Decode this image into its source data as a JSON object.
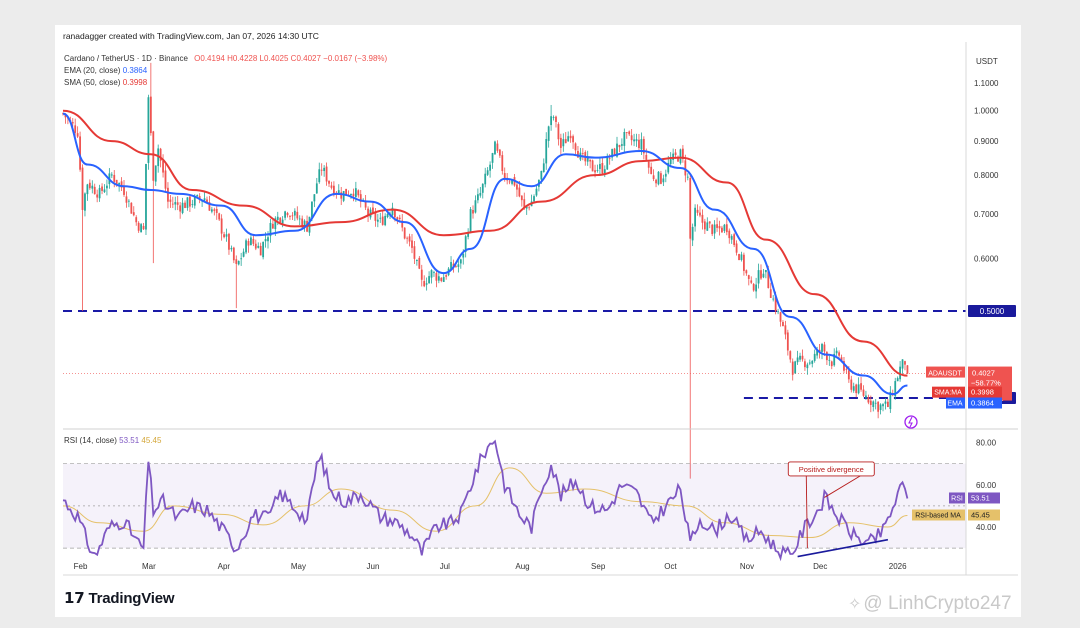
{
  "header": {
    "credit": "ranadagger created with TradingView.com, Jan 07, 2026 14:30 UTC",
    "symbol_line": "Cardano / TetherUS · 1D · Binance",
    "ohlc": "O0.4194 H0.4228 L0.4025 C0.4027 −0.0167 (−3.98%)",
    "ema_label": "EMA (20, close)",
    "ema_value": "0.3864",
    "sma_label": "SMA (50, close)",
    "sma_value": "0.3998",
    "rsi_label": "RSI (14, close)",
    "rsi_value": "53.51",
    "rsi_ma_value": "45.45"
  },
  "logo": {
    "text": "TradingView",
    "icon": "tradingview-logo-icon"
  },
  "watermark": {
    "text": "LinhCrypto247",
    "icon": "binance-square-icon"
  },
  "colors": {
    "ema": "#2962ff",
    "sma": "#e53935",
    "up": "#26a69a",
    "down": "#ef5350",
    "rsi": "#7e57c2",
    "rsi_ma": "#e5c16a",
    "level": "#1a1aa6"
  },
  "chart_data": [
    {
      "type": "candlestick",
      "title": "Cardano / TetherUS · 1D · Binance",
      "price_unit": "USDT",
      "y_scale": "log",
      "ylim": [
        0.355,
        1.2
      ],
      "xlim": [
        "2025-01-26",
        "2026-01-31"
      ],
      "y_ticks": [
        1.1,
        1.0,
        0.9,
        0.8,
        0.7,
        0.6
      ],
      "x_ticks": [
        {
          "date": "2025-02-01",
          "label": "Feb"
        },
        {
          "date": "2025-03-01",
          "label": "Mar"
        },
        {
          "date": "2025-04-01",
          "label": "Apr"
        },
        {
          "date": "2025-05-01",
          "label": "May"
        },
        {
          "date": "2025-06-01",
          "label": "Jun"
        },
        {
          "date": "2025-07-01",
          "label": "Jul"
        },
        {
          "date": "2025-08-01",
          "label": "Aug"
        },
        {
          "date": "2025-09-01",
          "label": "Sep"
        },
        {
          "date": "2025-10-01",
          "label": "Oct"
        },
        {
          "date": "2025-11-01",
          "label": "Nov"
        },
        {
          "date": "2025-12-01",
          "label": "Dec"
        },
        {
          "date": "2026-01-01",
          "label": "2026"
        }
      ],
      "close_path": [
        [
          "2025-01-26",
          0.99
        ],
        [
          "2025-02-01",
          0.93
        ],
        [
          "2025-02-03",
          0.72
        ],
        [
          "2025-02-05",
          0.78
        ],
        [
          "2025-02-10",
          0.75
        ],
        [
          "2025-02-15",
          0.8
        ],
        [
          "2025-02-20",
          0.76
        ],
        [
          "2025-02-25",
          0.68
        ],
        [
          "2025-02-28",
          0.66
        ],
        [
          "2025-03-02",
          1.05
        ],
        [
          "2025-03-04",
          0.8
        ],
        [
          "2025-03-06",
          0.88
        ],
        [
          "2025-03-10",
          0.73
        ],
        [
          "2025-03-15",
          0.72
        ],
        [
          "2025-03-20",
          0.73
        ],
        [
          "2025-03-25",
          0.74
        ],
        [
          "2025-03-30",
          0.69
        ],
        [
          "2025-04-03",
          0.64
        ],
        [
          "2025-04-07",
          0.58
        ],
        [
          "2025-04-12",
          0.64
        ],
        [
          "2025-04-17",
          0.62
        ],
        [
          "2025-04-22",
          0.68
        ],
        [
          "2025-04-28",
          0.71
        ],
        [
          "2025-05-02",
          0.69
        ],
        [
          "2025-05-06",
          0.67
        ],
        [
          "2025-05-10",
          0.78
        ],
        [
          "2025-05-12",
          0.82
        ],
        [
          "2025-05-16",
          0.77
        ],
        [
          "2025-05-20",
          0.75
        ],
        [
          "2025-05-25",
          0.76
        ],
        [
          "2025-05-31",
          0.7
        ],
        [
          "2025-06-05",
          0.68
        ],
        [
          "2025-06-10",
          0.72
        ],
        [
          "2025-06-15",
          0.65
        ],
        [
          "2025-06-18",
          0.62
        ],
        [
          "2025-06-22",
          0.55
        ],
        [
          "2025-06-26",
          0.57
        ],
        [
          "2025-06-30",
          0.56
        ],
        [
          "2025-07-04",
          0.58
        ],
        [
          "2025-07-08",
          0.59
        ],
        [
          "2025-07-12",
          0.7
        ],
        [
          "2025-07-16",
          0.75
        ],
        [
          "2025-07-20",
          0.83
        ],
        [
          "2025-07-22",
          0.88
        ],
        [
          "2025-07-26",
          0.8
        ],
        [
          "2025-07-30",
          0.78
        ],
        [
          "2025-08-03",
          0.71
        ],
        [
          "2025-08-06",
          0.73
        ],
        [
          "2025-08-10",
          0.8
        ],
        [
          "2025-08-13",
          0.95
        ],
        [
          "2025-08-15",
          0.98
        ],
        [
          "2025-08-18",
          0.88
        ],
        [
          "2025-08-22",
          0.93
        ],
        [
          "2025-08-26",
          0.85
        ],
        [
          "2025-08-31",
          0.82
        ],
        [
          "2025-09-04",
          0.82
        ],
        [
          "2025-09-08",
          0.86
        ],
        [
          "2025-09-13",
          0.91
        ],
        [
          "2025-09-17",
          0.9
        ],
        [
          "2025-09-20",
          0.89
        ],
        [
          "2025-09-24",
          0.8
        ],
        [
          "2025-09-28",
          0.79
        ],
        [
          "2025-10-02",
          0.84
        ],
        [
          "2025-10-06",
          0.86
        ],
        [
          "2025-10-09",
          0.79
        ],
        [
          "2025-10-10",
          0.64
        ],
        [
          "2025-10-12",
          0.7
        ],
        [
          "2025-10-15",
          0.68
        ],
        [
          "2025-10-20",
          0.66
        ],
        [
          "2025-10-25",
          0.67
        ],
        [
          "2025-10-30",
          0.61
        ],
        [
          "2025-11-04",
          0.54
        ],
        [
          "2025-11-09",
          0.58
        ],
        [
          "2025-11-13",
          0.52
        ],
        [
          "2025-11-17",
          0.47
        ],
        [
          "2025-11-21",
          0.41
        ],
        [
          "2025-11-24",
          0.42
        ],
        [
          "2025-11-28",
          0.42
        ],
        [
          "2025-12-03",
          0.44
        ],
        [
          "2025-12-07",
          0.42
        ],
        [
          "2025-12-10",
          0.43
        ],
        [
          "2025-12-14",
          0.39
        ],
        [
          "2025-12-18",
          0.38
        ],
        [
          "2025-12-22",
          0.37
        ],
        [
          "2025-12-26",
          0.36
        ],
        [
          "2025-12-30",
          0.36
        ],
        [
          "2026-01-02",
          0.39
        ],
        [
          "2026-01-04",
          0.41
        ],
        [
          "2026-01-06",
          0.42
        ],
        [
          "2026-01-07",
          0.4027
        ]
      ],
      "spike_lows": [
        [
          "2025-02-03",
          0.5
        ],
        [
          "2025-03-04",
          0.59
        ],
        [
          "2025-04-07",
          0.505
        ],
        [
          "2025-10-10",
          0.28
        ],
        [
          "2025-12-26",
          0.345
        ]
      ],
      "spike_highs": [
        [
          "2025-03-03",
          1.18
        ],
        [
          "2025-08-14",
          1.02
        ]
      ],
      "series": [
        {
          "name": "EMA (20, close)",
          "points": [
            [
              "2025-01-26",
              0.99
            ],
            [
              "2025-02-05",
              0.83
            ],
            [
              "2025-02-20",
              0.77
            ],
            [
              "2025-03-03",
              0.76
            ],
            [
              "2025-03-15",
              0.75
            ],
            [
              "2025-04-01",
              0.72
            ],
            [
              "2025-04-15",
              0.65
            ],
            [
              "2025-05-01",
              0.66
            ],
            [
              "2025-05-18",
              0.75
            ],
            [
              "2025-06-01",
              0.73
            ],
            [
              "2025-06-15",
              0.68
            ],
            [
              "2025-07-01",
              0.57
            ],
            [
              "2025-07-12",
              0.62
            ],
            [
              "2025-07-26",
              0.79
            ],
            [
              "2025-08-06",
              0.77
            ],
            [
              "2025-08-20",
              0.86
            ],
            [
              "2025-09-01",
              0.85
            ],
            [
              "2025-09-20",
              0.87
            ],
            [
              "2025-10-06",
              0.82
            ],
            [
              "2025-10-20",
              0.71
            ],
            [
              "2025-11-05",
              0.62
            ],
            [
              "2025-11-20",
              0.49
            ],
            [
              "2025-12-05",
              0.43
            ],
            [
              "2025-12-20",
              0.4
            ],
            [
              "2026-01-01",
              0.375
            ],
            [
              "2026-01-07",
              0.3864
            ]
          ]
        },
        {
          "name": "SMA (50, close)",
          "points": [
            [
              "2025-01-26",
              1.0
            ],
            [
              "2025-02-15",
              0.9
            ],
            [
              "2025-03-03",
              0.86
            ],
            [
              "2025-03-20",
              0.76
            ],
            [
              "2025-04-10",
              0.72
            ],
            [
              "2025-05-01",
              0.67
            ],
            [
              "2025-05-20",
              0.68
            ],
            [
              "2025-06-10",
              0.71
            ],
            [
              "2025-07-01",
              0.65
            ],
            [
              "2025-07-20",
              0.66
            ],
            [
              "2025-08-10",
              0.73
            ],
            [
              "2025-09-01",
              0.8
            ],
            [
              "2025-09-20",
              0.84
            ],
            [
              "2025-10-06",
              0.85
            ],
            [
              "2025-10-25",
              0.78
            ],
            [
              "2025-11-10",
              0.64
            ],
            [
              "2025-11-30",
              0.53
            ],
            [
              "2025-12-20",
              0.45
            ],
            [
              "2026-01-07",
              0.3998
            ]
          ]
        }
      ],
      "levels": [
        {
          "value": 0.5,
          "label": "0.5000",
          "from": "2025-01-26"
        },
        {
          "value": 0.37,
          "label": "0.3700",
          "from": "2025-11-01"
        }
      ],
      "axis_tags": [
        {
          "value": 0.4027,
          "label": "ADAUSDT",
          "price": "0.4027",
          "change": "−58.77%",
          "countdown": "09:29:48",
          "color": "#ef5350"
        },
        {
          "value": 0.3998,
          "label": "SMA:MA",
          "price": "0.3998",
          "color": "#e53935"
        },
        {
          "value": 0.3864,
          "label": "EMA",
          "price": "0.3864",
          "color": "#2962ff"
        }
      ]
    },
    {
      "type": "line",
      "title": "RSI (14, close)",
      "ylim": [
        22,
        85
      ],
      "y_ticks": [
        80,
        60,
        40
      ],
      "bands": [
        70,
        50,
        30
      ],
      "series": [
        {
          "name": "RSI",
          "points": [
            [
              "2025-01-26",
              53
            ],
            [
              "2025-02-01",
              45
            ],
            [
              "2025-02-05",
              33
            ],
            [
              "2025-02-08",
              26
            ],
            [
              "2025-02-14",
              40
            ],
            [
              "2025-02-20",
              43
            ],
            [
              "2025-02-26",
              32
            ],
            [
              "2025-02-28",
              30
            ],
            [
              "2025-03-02",
              72
            ],
            [
              "2025-03-04",
              48
            ],
            [
              "2025-03-08",
              52
            ],
            [
              "2025-03-14",
              44
            ],
            [
              "2025-03-20",
              50
            ],
            [
              "2025-03-26",
              48
            ],
            [
              "2025-04-02",
              38
            ],
            [
              "2025-04-07",
              30
            ],
            [
              "2025-04-14",
              46
            ],
            [
              "2025-04-20",
              44
            ],
            [
              "2025-04-25",
              56
            ],
            [
              "2025-05-02",
              48
            ],
            [
              "2025-05-06",
              43
            ],
            [
              "2025-05-10",
              70
            ],
            [
              "2025-05-12",
              72
            ],
            [
              "2025-05-16",
              56
            ],
            [
              "2025-05-22",
              52
            ],
            [
              "2025-05-28",
              56
            ],
            [
              "2025-06-05",
              45
            ],
            [
              "2025-06-12",
              42
            ],
            [
              "2025-06-18",
              36
            ],
            [
              "2025-06-22",
              28
            ],
            [
              "2025-06-28",
              40
            ],
            [
              "2025-07-04",
              42
            ],
            [
              "2025-07-08",
              46
            ],
            [
              "2025-07-14",
              66
            ],
            [
              "2025-07-18",
              76
            ],
            [
              "2025-07-22",
              82
            ],
            [
              "2025-07-26",
              60
            ],
            [
              "2025-08-01",
              46
            ],
            [
              "2025-08-06",
              40
            ],
            [
              "2025-08-10",
              58
            ],
            [
              "2025-08-14",
              70
            ],
            [
              "2025-08-18",
              55
            ],
            [
              "2025-08-24",
              62
            ],
            [
              "2025-08-30",
              50
            ],
            [
              "2025-09-06",
              48
            ],
            [
              "2025-09-12",
              60
            ],
            [
              "2025-09-18",
              56
            ],
            [
              "2025-09-24",
              42
            ],
            [
              "2025-09-30",
              50
            ],
            [
              "2025-10-06",
              58
            ],
            [
              "2025-10-10",
              32
            ],
            [
              "2025-10-14",
              44
            ],
            [
              "2025-10-20",
              38
            ],
            [
              "2025-10-26",
              46
            ],
            [
              "2025-11-02",
              34
            ],
            [
              "2025-11-08",
              38
            ],
            [
              "2025-11-14",
              30
            ],
            [
              "2025-11-20",
              26
            ],
            [
              "2025-11-26",
              40
            ],
            [
              "2025-12-02",
              49
            ],
            [
              "2025-12-04",
              54
            ],
            [
              "2025-12-10",
              44
            ],
            [
              "2025-12-16",
              36
            ],
            [
              "2025-12-22",
              32
            ],
            [
              "2025-12-28",
              38
            ],
            [
              "2026-01-02",
              52
            ],
            [
              "2026-01-05",
              60
            ],
            [
              "2026-01-07",
              53.51
            ]
          ]
        },
        {
          "name": "RSI-based MA",
          "points": [
            [
              "2025-01-26",
              50
            ],
            [
              "2025-02-10",
              42
            ],
            [
              "2025-02-28",
              38
            ],
            [
              "2025-03-12",
              50
            ],
            [
              "2025-04-01",
              46
            ],
            [
              "2025-04-18",
              41
            ],
            [
              "2025-05-05",
              50
            ],
            [
              "2025-05-20",
              58
            ],
            [
              "2025-06-10",
              48
            ],
            [
              "2025-06-28",
              38
            ],
            [
              "2025-07-14",
              50
            ],
            [
              "2025-07-28",
              68
            ],
            [
              "2025-08-12",
              56
            ],
            [
              "2025-08-28",
              58
            ],
            [
              "2025-09-20",
              52
            ],
            [
              "2025-10-08",
              50
            ],
            [
              "2025-10-24",
              42
            ],
            [
              "2025-11-12",
              36
            ],
            [
              "2025-11-28",
              35
            ],
            [
              "2025-12-14",
              42
            ],
            [
              "2025-12-30",
              40
            ],
            [
              "2026-01-07",
              45.45
            ]
          ]
        }
      ],
      "divergence_line": [
        [
          "2025-11-23",
          26
        ],
        [
          "2025-12-30",
          34
        ]
      ],
      "annotation": "Positive divergence",
      "axis_tags": [
        {
          "value": 53.51,
          "label": "RSI",
          "price": "53.51",
          "color": "#7e57c2"
        },
        {
          "value": 45.45,
          "label": "RSI-based MA",
          "price": "45.45",
          "color": "#e5c16a"
        }
      ]
    }
  ]
}
